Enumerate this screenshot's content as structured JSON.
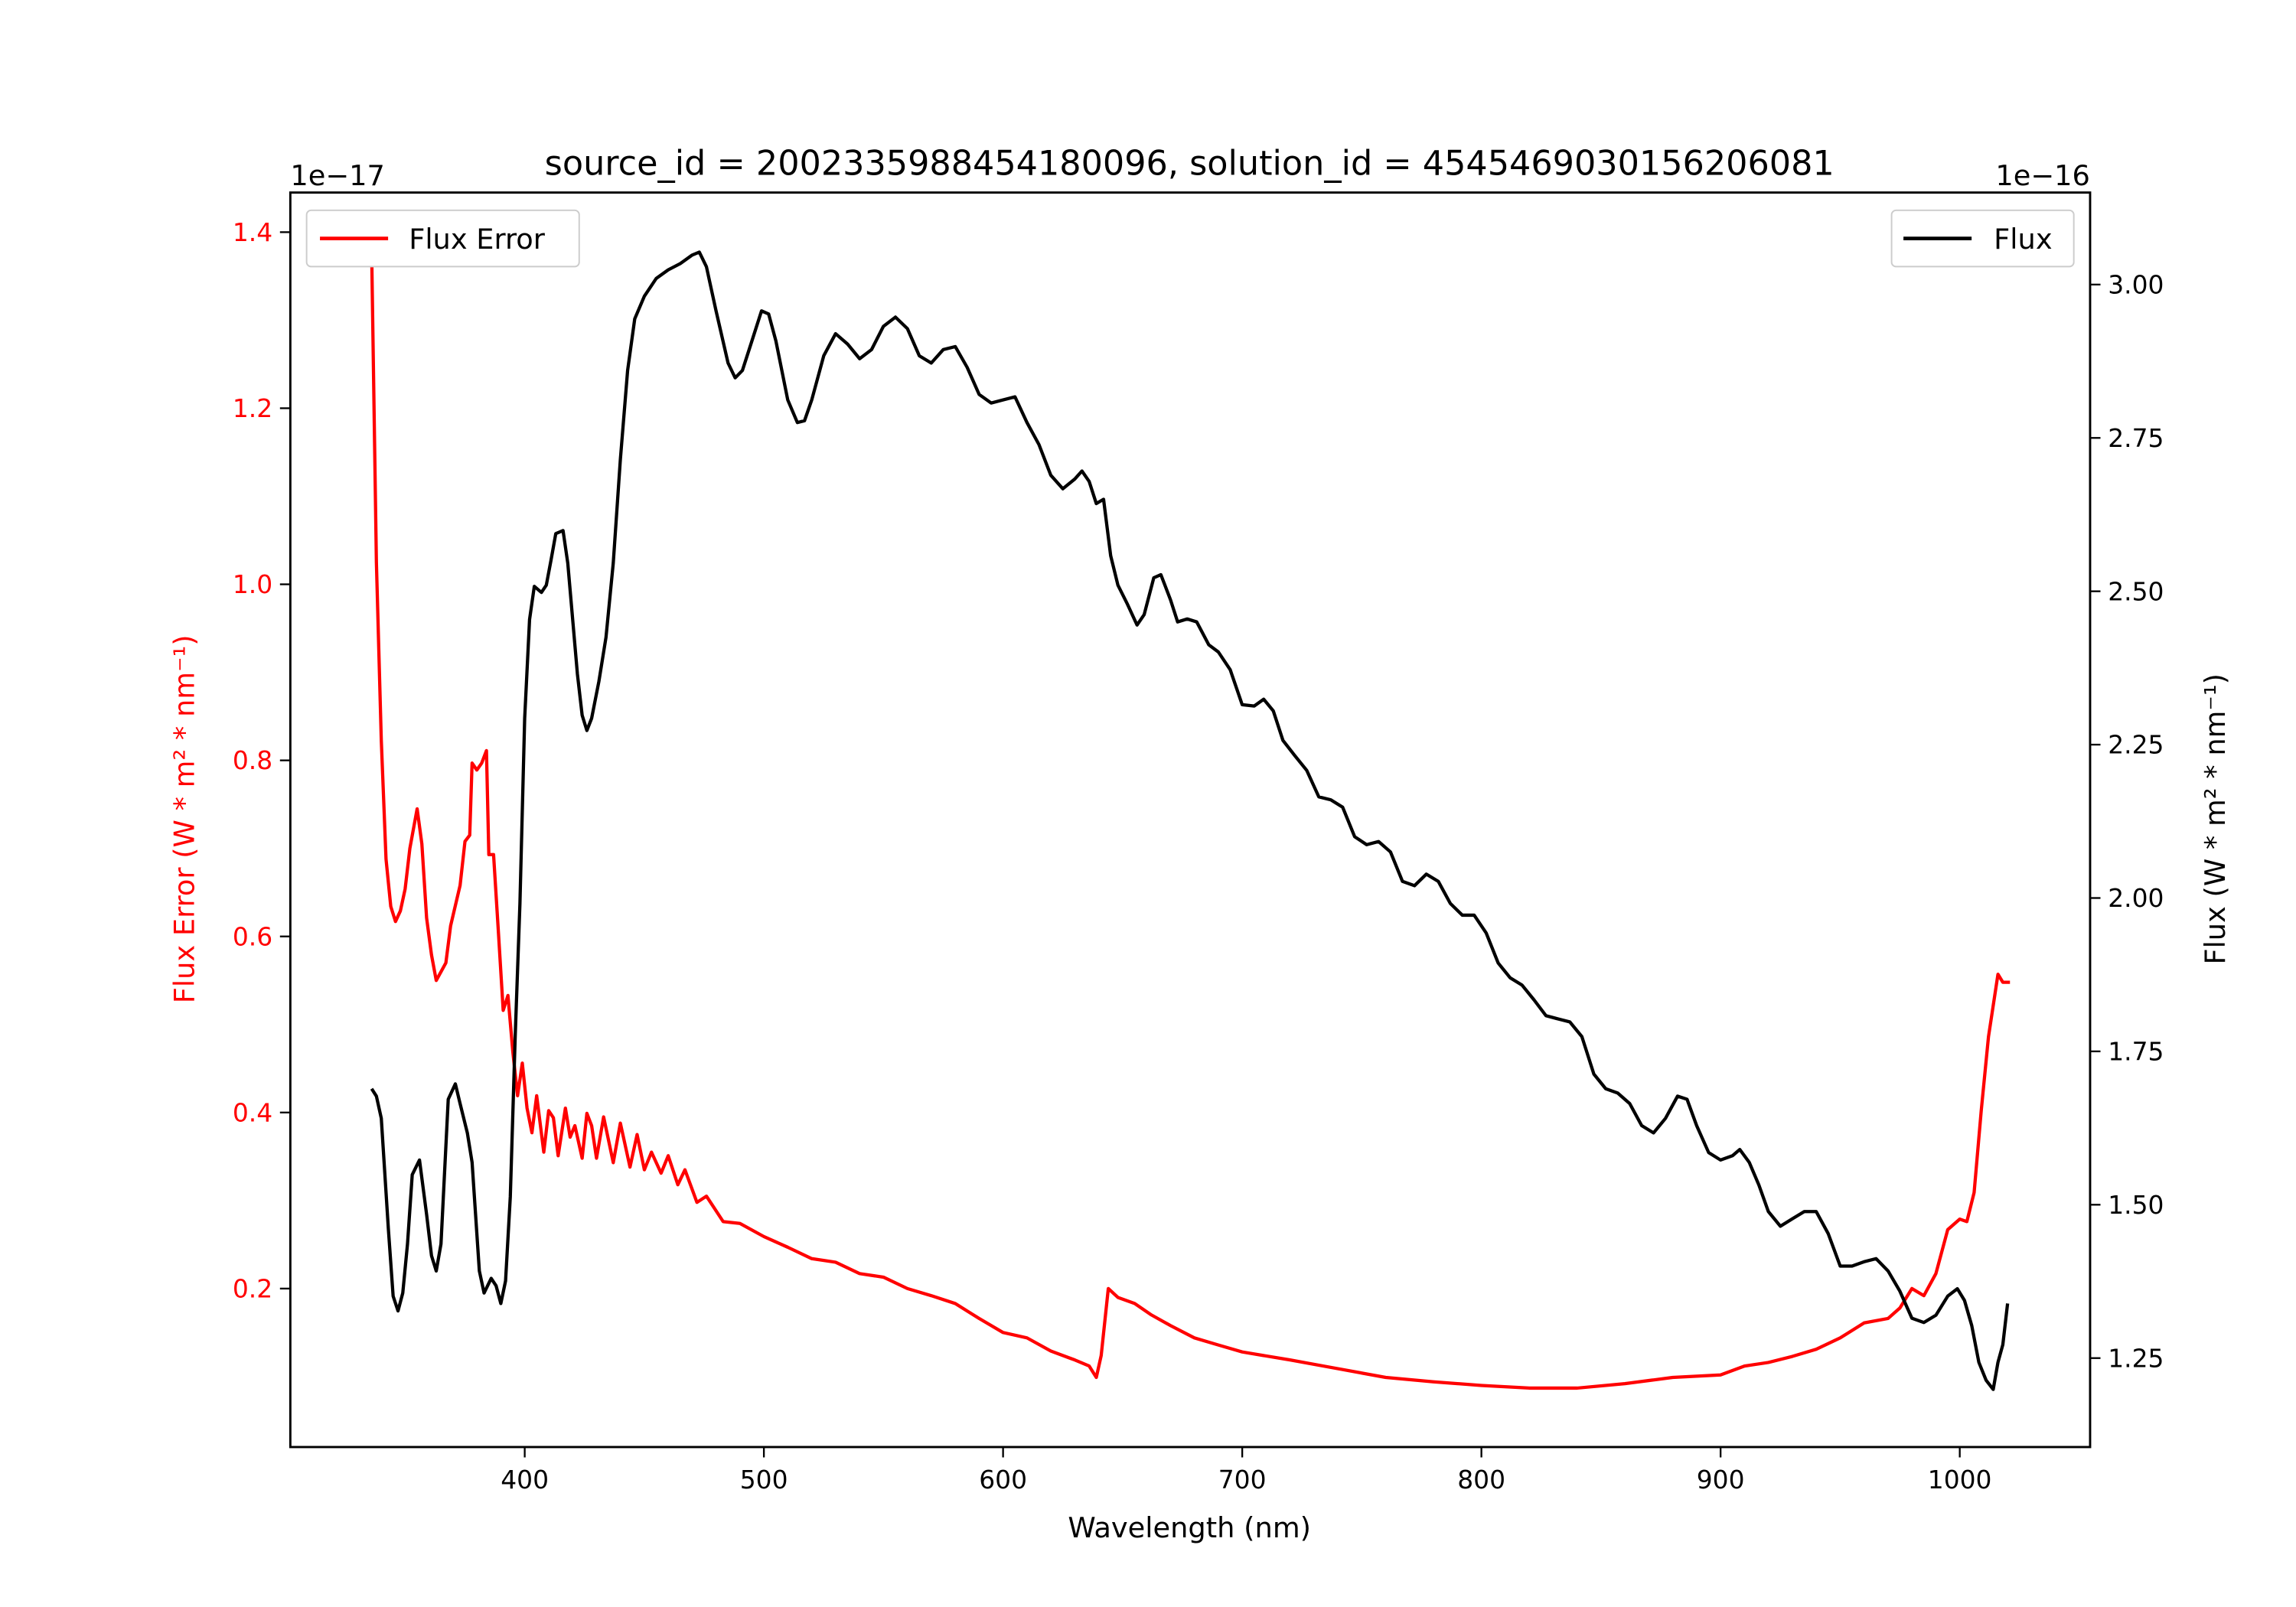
{
  "chart_data": {
    "type": "line",
    "title": "source_id = 2002335988454180096, solution_id = 4545469030156206081",
    "xlabel": "Wavelength (nm)",
    "ylabel_left": "Flux Error (W * m² * nm⁻¹)",
    "ylabel_right": "Flux (W * m² * nm⁻¹)",
    "offset_left": "1e−17",
    "offset_right": "1e−16",
    "xlim": [
      302,
      1054.5
    ],
    "ylim_left": [
      0.02,
      1.445
    ],
    "ylim_right": [
      1.105,
      3.15
    ],
    "xticks": [
      400,
      500,
      600,
      700,
      800,
      900,
      1000
    ],
    "yticks_left": [
      "0.2",
      "0.4",
      "0.6",
      "0.8",
      "1.0",
      "1.2",
      "1.4"
    ],
    "yticks_right": [
      "1.25",
      "1.50",
      "1.75",
      "2.00",
      "2.25",
      "2.50",
      "2.75",
      "3.00"
    ],
    "legend_left": {
      "label": "Flux Error",
      "placement": "upper-left"
    },
    "legend_right": {
      "label": "Flux",
      "placement": "upper-right"
    },
    "colors": {
      "flux_error": "#ff0000",
      "flux": "#000000"
    },
    "series": [
      {
        "name": "Flux Error",
        "axis": "left",
        "points": [
          [
            336,
            1.378
          ],
          [
            338,
            1.025
          ],
          [
            340,
            0.823
          ],
          [
            342,
            0.688
          ],
          [
            344,
            0.634
          ],
          [
            346,
            0.617
          ],
          [
            348,
            0.629
          ],
          [
            350,
            0.654
          ],
          [
            352,
            0.7
          ],
          [
            355,
            0.745
          ],
          [
            357,
            0.705
          ],
          [
            359,
            0.621
          ],
          [
            361,
            0.579
          ],
          [
            363,
            0.55
          ],
          [
            367,
            0.57
          ],
          [
            369,
            0.612
          ],
          [
            373,
            0.658
          ],
          [
            375,
            0.708
          ],
          [
            377,
            0.715
          ],
          [
            378,
            0.797
          ],
          [
            380,
            0.789
          ],
          [
            382,
            0.797
          ],
          [
            384,
            0.811
          ],
          [
            385,
            0.693
          ],
          [
            387,
            0.693
          ],
          [
            389,
            0.604
          ],
          [
            391,
            0.516
          ],
          [
            393,
            0.533
          ],
          [
            395,
            0.469
          ],
          [
            397,
            0.419
          ],
          [
            399,
            0.456
          ],
          [
            401,
            0.405
          ],
          [
            403,
            0.377
          ],
          [
            405,
            0.419
          ],
          [
            408,
            0.355
          ],
          [
            410,
            0.402
          ],
          [
            412,
            0.394
          ],
          [
            414,
            0.351
          ],
          [
            417,
            0.405
          ],
          [
            419,
            0.372
          ],
          [
            421,
            0.385
          ],
          [
            424,
            0.348
          ],
          [
            426,
            0.399
          ],
          [
            428,
            0.385
          ],
          [
            430,
            0.348
          ],
          [
            433,
            0.395
          ],
          [
            437,
            0.343
          ],
          [
            440,
            0.388
          ],
          [
            444,
            0.338
          ],
          [
            447,
            0.375
          ],
          [
            450,
            0.335
          ],
          [
            453,
            0.355
          ],
          [
            457,
            0.331
          ],
          [
            460,
            0.351
          ],
          [
            464,
            0.318
          ],
          [
            467,
            0.335
          ],
          [
            472,
            0.298
          ],
          [
            476,
            0.305
          ],
          [
            483,
            0.276
          ],
          [
            490,
            0.274
          ],
          [
            500,
            0.259
          ],
          [
            510,
            0.247
          ],
          [
            520,
            0.234
          ],
          [
            530,
            0.23
          ],
          [
            540,
            0.217
          ],
          [
            550,
            0.213
          ],
          [
            560,
            0.2
          ],
          [
            570,
            0.192
          ],
          [
            580,
            0.183
          ],
          [
            590,
            0.166
          ],
          [
            600,
            0.15
          ],
          [
            610,
            0.144
          ],
          [
            620,
            0.129
          ],
          [
            630,
            0.119
          ],
          [
            636,
            0.112
          ],
          [
            639,
            0.099
          ],
          [
            641,
            0.124
          ],
          [
            644,
            0.2
          ],
          [
            648,
            0.19
          ],
          [
            655,
            0.183
          ],
          [
            662,
            0.17
          ],
          [
            670,
            0.158
          ],
          [
            680,
            0.144
          ],
          [
            690,
            0.136
          ],
          [
            700,
            0.128
          ],
          [
            720,
            0.119
          ],
          [
            740,
            0.109
          ],
          [
            760,
            0.099
          ],
          [
            780,
            0.094
          ],
          [
            800,
            0.09
          ],
          [
            820,
            0.087
          ],
          [
            840,
            0.087
          ],
          [
            860,
            0.092
          ],
          [
            880,
            0.099
          ],
          [
            900,
            0.102
          ],
          [
            910,
            0.112
          ],
          [
            920,
            0.116
          ],
          [
            930,
            0.123
          ],
          [
            940,
            0.131
          ],
          [
            950,
            0.144
          ],
          [
            960,
            0.161
          ],
          [
            970,
            0.166
          ],
          [
            975,
            0.178
          ],
          [
            980,
            0.2
          ],
          [
            985,
            0.192
          ],
          [
            990,
            0.217
          ],
          [
            995,
            0.267
          ],
          [
            1000,
            0.279
          ],
          [
            1003,
            0.276
          ],
          [
            1006,
            0.309
          ],
          [
            1009,
            0.402
          ],
          [
            1012,
            0.486
          ],
          [
            1016,
            0.557
          ],
          [
            1018,
            0.548
          ],
          [
            1021,
            0.548
          ]
        ]
      },
      {
        "name": "Flux",
        "axis": "right",
        "points": [
          [
            336,
            1.689
          ],
          [
            338,
            1.677
          ],
          [
            340,
            1.641
          ],
          [
            343,
            1.46
          ],
          [
            345,
            1.351
          ],
          [
            347,
            1.327
          ],
          [
            349,
            1.356
          ],
          [
            351,
            1.436
          ],
          [
            353,
            1.549
          ],
          [
            356,
            1.573
          ],
          [
            359,
            1.484
          ],
          [
            361,
            1.417
          ],
          [
            363,
            1.392
          ],
          [
            365,
            1.436
          ],
          [
            368,
            1.672
          ],
          [
            371,
            1.697
          ],
          [
            373,
            1.665
          ],
          [
            376,
            1.617
          ],
          [
            378,
            1.569
          ],
          [
            381,
            1.392
          ],
          [
            383,
            1.356
          ],
          [
            386,
            1.38
          ],
          [
            388,
            1.368
          ],
          [
            390,
            1.339
          ],
          [
            392,
            1.376
          ],
          [
            394,
            1.513
          ],
          [
            396,
            1.774
          ],
          [
            398,
            1.991
          ],
          [
            400,
            2.293
          ],
          [
            402,
            2.454
          ],
          [
            404,
            2.508
          ],
          [
            407,
            2.498
          ],
          [
            409,
            2.51
          ],
          [
            411,
            2.551
          ],
          [
            413,
            2.594
          ],
          [
            416,
            2.599
          ],
          [
            418,
            2.546
          ],
          [
            422,
            2.365
          ],
          [
            424,
            2.298
          ],
          [
            426,
            2.273
          ],
          [
            428,
            2.293
          ],
          [
            431,
            2.353
          ],
          [
            434,
            2.425
          ],
          [
            437,
            2.546
          ],
          [
            440,
            2.715
          ],
          [
            443,
            2.86
          ],
          [
            446,
            2.944
          ],
          [
            450,
            2.981
          ],
          [
            455,
            3.01
          ],
          [
            460,
            3.024
          ],
          [
            465,
            3.034
          ],
          [
            470,
            3.048
          ],
          [
            473,
            3.053
          ],
          [
            476,
            3.029
          ],
          [
            480,
            2.957
          ],
          [
            485,
            2.872
          ],
          [
            488,
            2.848
          ],
          [
            491,
            2.86
          ],
          [
            495,
            2.908
          ],
          [
            499,
            2.957
          ],
          [
            502,
            2.952
          ],
          [
            505,
            2.908
          ],
          [
            510,
            2.812
          ],
          [
            514,
            2.775
          ],
          [
            517,
            2.778
          ],
          [
            520,
            2.812
          ],
          [
            525,
            2.884
          ],
          [
            530,
            2.92
          ],
          [
            535,
            2.903
          ],
          [
            540,
            2.879
          ],
          [
            545,
            2.894
          ],
          [
            550,
            2.932
          ],
          [
            555,
            2.947
          ],
          [
            560,
            2.928
          ],
          [
            565,
            2.884
          ],
          [
            570,
            2.872
          ],
          [
            575,
            2.894
          ],
          [
            580,
            2.899
          ],
          [
            585,
            2.865
          ],
          [
            590,
            2.821
          ],
          [
            595,
            2.807
          ],
          [
            600,
            2.812
          ],
          [
            605,
            2.817
          ],
          [
            610,
            2.775
          ],
          [
            615,
            2.739
          ],
          [
            620,
            2.689
          ],
          [
            625,
            2.667
          ],
          [
            630,
            2.683
          ],
          [
            633,
            2.696
          ],
          [
            636,
            2.679
          ],
          [
            639,
            2.643
          ],
          [
            642,
            2.65
          ],
          [
            645,
            2.558
          ],
          [
            648,
            2.51
          ],
          [
            652,
            2.479
          ],
          [
            656,
            2.445
          ],
          [
            659,
            2.462
          ],
          [
            663,
            2.522
          ],
          [
            666,
            2.527
          ],
          [
            670,
            2.486
          ],
          [
            673,
            2.45
          ],
          [
            677,
            2.455
          ],
          [
            681,
            2.45
          ],
          [
            686,
            2.413
          ],
          [
            690,
            2.401
          ],
          [
            695,
            2.372
          ],
          [
            700,
            2.315
          ],
          [
            705,
            2.313
          ],
          [
            709,
            2.324
          ],
          [
            713,
            2.305
          ],
          [
            717,
            2.257
          ],
          [
            722,
            2.232
          ],
          [
            727,
            2.208
          ],
          [
            732,
            2.165
          ],
          [
            737,
            2.16
          ],
          [
            742,
            2.148
          ],
          [
            747,
            2.1
          ],
          [
            752,
            2.087
          ],
          [
            757,
            2.092
          ],
          [
            762,
            2.075
          ],
          [
            767,
            2.027
          ],
          [
            772,
            2.02
          ],
          [
            777,
            2.039
          ],
          [
            782,
            2.027
          ],
          [
            787,
            1.991
          ],
          [
            792,
            1.972
          ],
          [
            797,
            1.972
          ],
          [
            802,
            1.943
          ],
          [
            807,
            1.894
          ],
          [
            812,
            1.87
          ],
          [
            817,
            1.858
          ],
          [
            822,
            1.834
          ],
          [
            827,
            1.808
          ],
          [
            832,
            1.803
          ],
          [
            837,
            1.798
          ],
          [
            842,
            1.774
          ],
          [
            847,
            1.713
          ],
          [
            852,
            1.689
          ],
          [
            857,
            1.682
          ],
          [
            862,
            1.665
          ],
          [
            867,
            1.629
          ],
          [
            872,
            1.617
          ],
          [
            877,
            1.641
          ],
          [
            882,
            1.677
          ],
          [
            886,
            1.672
          ],
          [
            890,
            1.629
          ],
          [
            895,
            1.585
          ],
          [
            900,
            1.573
          ],
          [
            905,
            1.58
          ],
          [
            908,
            1.59
          ],
          [
            912,
            1.569
          ],
          [
            916,
            1.532
          ],
          [
            920,
            1.489
          ],
          [
            925,
            1.465
          ],
          [
            930,
            1.477
          ],
          [
            935,
            1.489
          ],
          [
            940,
            1.489
          ],
          [
            945,
            1.453
          ],
          [
            950,
            1.4
          ],
          [
            955,
            1.4
          ],
          [
            960,
            1.407
          ],
          [
            965,
            1.412
          ],
          [
            970,
            1.392
          ],
          [
            975,
            1.359
          ],
          [
            980,
            1.315
          ],
          [
            985,
            1.308
          ],
          [
            990,
            1.32
          ],
          [
            995,
            1.351
          ],
          [
            999,
            1.363
          ],
          [
            1002,
            1.344
          ],
          [
            1005,
            1.303
          ],
          [
            1008,
            1.243
          ],
          [
            1011,
            1.214
          ],
          [
            1014,
            1.199
          ],
          [
            1016,
            1.243
          ],
          [
            1018,
            1.272
          ],
          [
            1020,
            1.339
          ]
        ]
      }
    ]
  }
}
